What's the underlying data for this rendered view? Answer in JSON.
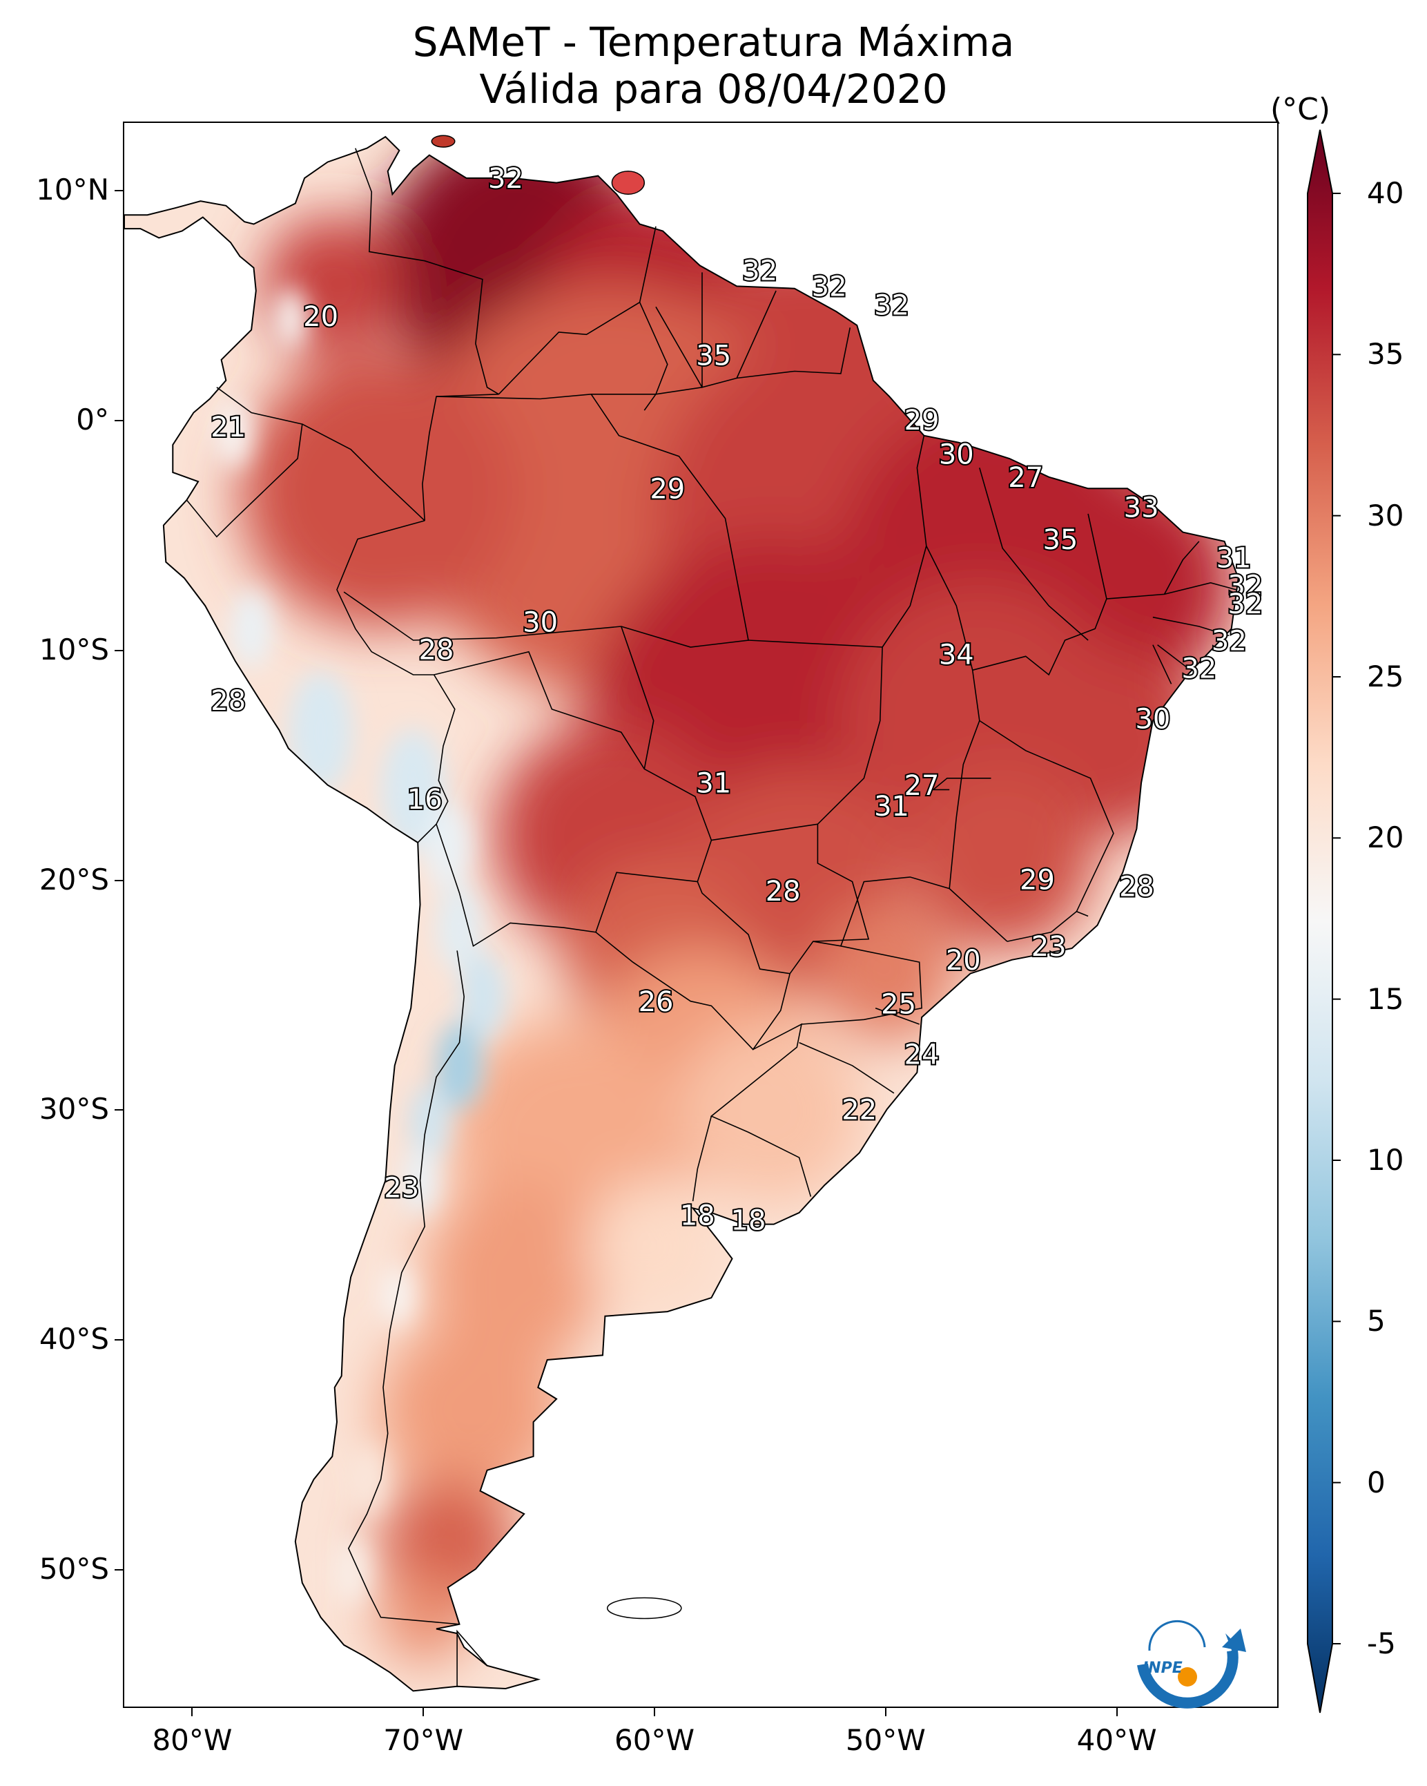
{
  "title": {
    "line1": "SAMeT - Temperatura Máxima",
    "line2": "Válida para 08/04/2020"
  },
  "axes": {
    "lat_ticks": [
      "10°N",
      "0°",
      "10°S",
      "20°S",
      "30°S",
      "40°S",
      "50°S"
    ],
    "lon_ticks": [
      "80°W",
      "70°W",
      "60°W",
      "50°W",
      "40°W"
    ]
  },
  "colorbar": {
    "unit": "(°C)",
    "ticks": [
      "40",
      "35",
      "30",
      "25",
      "20",
      "15",
      "10",
      "5",
      "0",
      "-5"
    ],
    "range": [
      -5,
      40
    ],
    "colors": [
      "#67001f",
      "#b2182b",
      "#d6604d",
      "#f4a582",
      "#fddbc7",
      "#f7f7f7",
      "#d1e5f0",
      "#92c5de",
      "#4393c3",
      "#2166ac",
      "#053061"
    ]
  },
  "chart_data": {
    "type": "heatmap",
    "title": "SAMeT - Temperatura Máxima\nVálida para 08/04/2020",
    "colorbar_label": "(°C)",
    "vlim": [
      -5,
      40
    ],
    "extent": {
      "lon": [
        -83,
        -33
      ],
      "lat": [
        -56,
        13
      ]
    },
    "annotations": [
      {
        "lon": -66.5,
        "lat": 10.5,
        "value": "32"
      },
      {
        "lon": -55.5,
        "lat": 6.5,
        "value": "32"
      },
      {
        "lon": -52.5,
        "lat": 5.8,
        "value": "32"
      },
      {
        "lon": -49.8,
        "lat": 5.0,
        "value": "32"
      },
      {
        "lon": -57.5,
        "lat": 2.8,
        "value": "35"
      },
      {
        "lon": -74.5,
        "lat": 4.5,
        "value": "20"
      },
      {
        "lon": -78.5,
        "lat": -0.3,
        "value": "21"
      },
      {
        "lon": -48.5,
        "lat": 0.0,
        "value": "29"
      },
      {
        "lon": -47.0,
        "lat": -1.5,
        "value": "30"
      },
      {
        "lon": -59.5,
        "lat": -3.0,
        "value": "29"
      },
      {
        "lon": -44.0,
        "lat": -2.5,
        "value": "27"
      },
      {
        "lon": -39.0,
        "lat": -3.8,
        "value": "33"
      },
      {
        "lon": -42.5,
        "lat": -5.2,
        "value": "35"
      },
      {
        "lon": -35.0,
        "lat": -6.0,
        "value": "31"
      },
      {
        "lon": -34.5,
        "lat": -7.2,
        "value": "32"
      },
      {
        "lon": -34.5,
        "lat": -8.0,
        "value": "32"
      },
      {
        "lon": -35.2,
        "lat": -9.6,
        "value": "32"
      },
      {
        "lon": -36.5,
        "lat": -10.8,
        "value": "32"
      },
      {
        "lon": -47.0,
        "lat": -10.2,
        "value": "34"
      },
      {
        "lon": -65.0,
        "lat": -8.8,
        "value": "30"
      },
      {
        "lon": -69.5,
        "lat": -10.0,
        "value": "28"
      },
      {
        "lon": -38.5,
        "lat": -13.0,
        "value": "30"
      },
      {
        "lon": -78.5,
        "lat": -12.2,
        "value": "28"
      },
      {
        "lon": -57.5,
        "lat": -15.8,
        "value": "31"
      },
      {
        "lon": -48.5,
        "lat": -15.9,
        "value": "27"
      },
      {
        "lon": -49.8,
        "lat": -16.8,
        "value": "31"
      },
      {
        "lon": -70.0,
        "lat": -16.5,
        "value": "16"
      },
      {
        "lon": -43.5,
        "lat": -20.0,
        "value": "29"
      },
      {
        "lon": -39.2,
        "lat": -20.3,
        "value": "28"
      },
      {
        "lon": -54.5,
        "lat": -20.5,
        "value": "28"
      },
      {
        "lon": -43.0,
        "lat": -22.9,
        "value": "23"
      },
      {
        "lon": -46.7,
        "lat": -23.5,
        "value": "20"
      },
      {
        "lon": -60.0,
        "lat": -25.3,
        "value": "26"
      },
      {
        "lon": -49.5,
        "lat": -25.4,
        "value": "25"
      },
      {
        "lon": -48.5,
        "lat": -27.6,
        "value": "24"
      },
      {
        "lon": -51.2,
        "lat": -30.0,
        "value": "22"
      },
      {
        "lon": -71.0,
        "lat": -33.4,
        "value": "23"
      },
      {
        "lon": -58.2,
        "lat": -34.6,
        "value": "18"
      },
      {
        "lon": -56.0,
        "lat": -34.8,
        "value": "18"
      }
    ]
  },
  "logo": {
    "text": "INPE"
  }
}
